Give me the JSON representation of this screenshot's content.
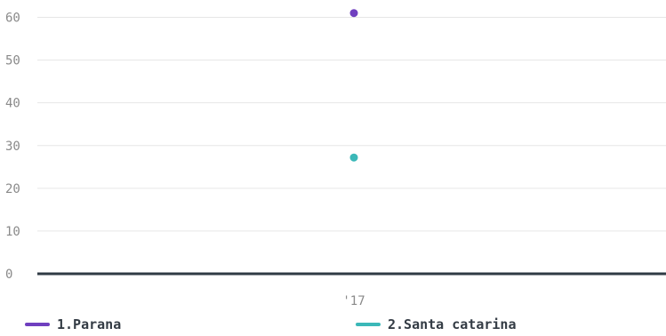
{
  "chart_data": {
    "type": "scatter",
    "x": [
      "'17"
    ],
    "ylim": [
      0,
      60
    ],
    "yticks": [
      0,
      10,
      20,
      30,
      40,
      50,
      60
    ],
    "grid": true,
    "legend_position": "bottom",
    "series": [
      {
        "name": "1.Parana",
        "color": "#6f3fbf",
        "values": [
          61
        ]
      },
      {
        "name": "2.Santa catarina",
        "color": "#3bb8b8",
        "values": [
          27.2
        ]
      }
    ]
  }
}
